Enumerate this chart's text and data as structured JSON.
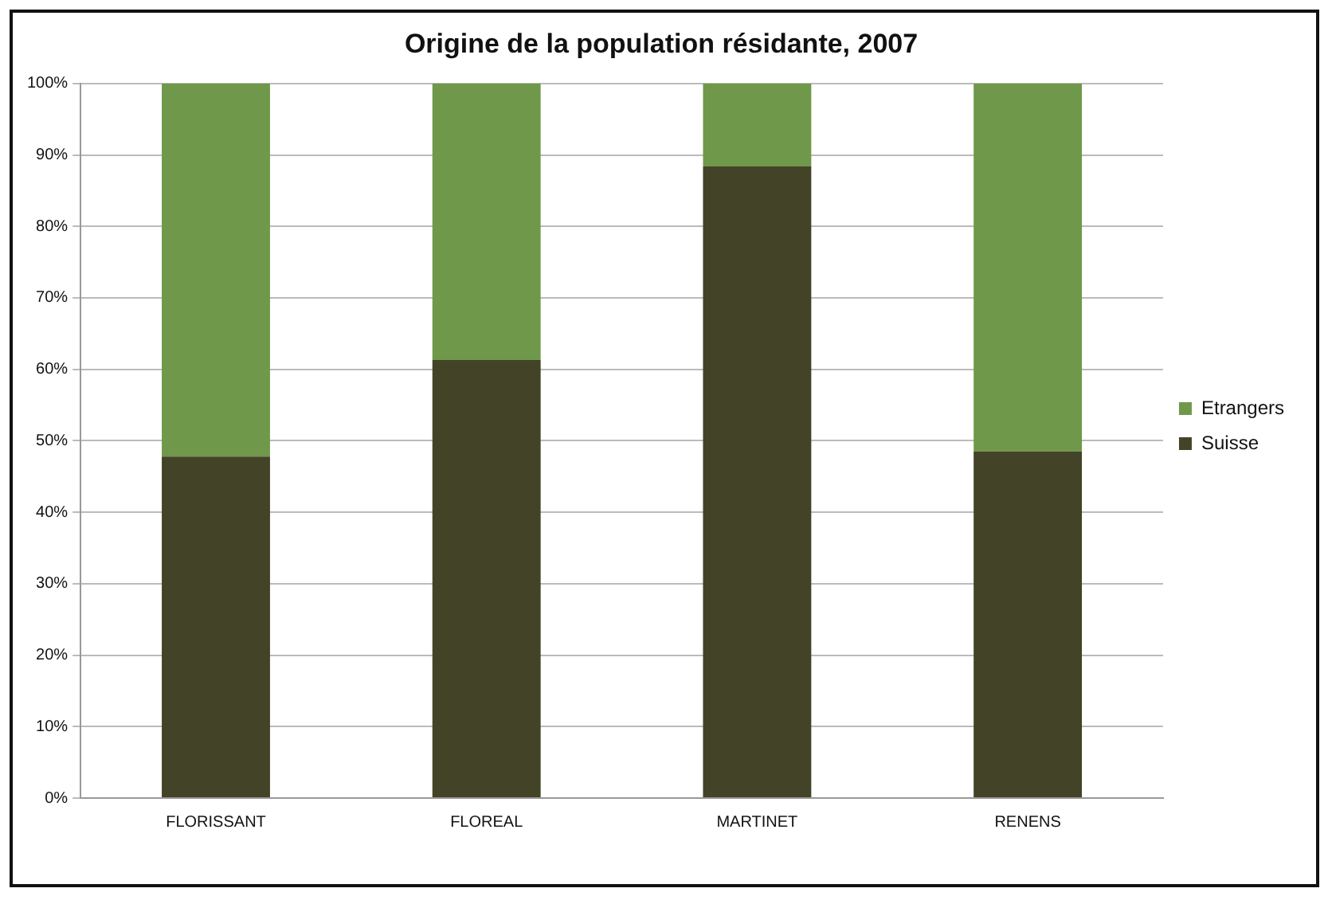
{
  "chart_data": {
    "type": "bar",
    "title": "Origine de la population résidante, 2007",
    "stacked": true,
    "categories": [
      "FLORISSANT",
      "FLOREAL",
      "MARTINET",
      "RENENS"
    ],
    "series": [
      {
        "name": "Suisse",
        "color": "#434328",
        "values": [
          47.8,
          61.3,
          88.4,
          48.5
        ]
      },
      {
        "name": "Etrangers",
        "color": "#70984a",
        "values": [
          52.2,
          38.7,
          11.6,
          51.5
        ]
      }
    ],
    "ylim": [
      0,
      100
    ],
    "yticks": [
      {
        "value": 0,
        "label": "0%"
      },
      {
        "value": 10,
        "label": "10%"
      },
      {
        "value": 20,
        "label": "20%"
      },
      {
        "value": 30,
        "label": "30%"
      },
      {
        "value": 40,
        "label": "40%"
      },
      {
        "value": 50,
        "label": "50%"
      },
      {
        "value": 60,
        "label": "60%"
      },
      {
        "value": 70,
        "label": "70%"
      },
      {
        "value": 80,
        "label": "80%"
      },
      {
        "value": 90,
        "label": "90%"
      },
      {
        "value": 100,
        "label": "100%"
      }
    ],
    "grid": "y",
    "legend": "right"
  }
}
